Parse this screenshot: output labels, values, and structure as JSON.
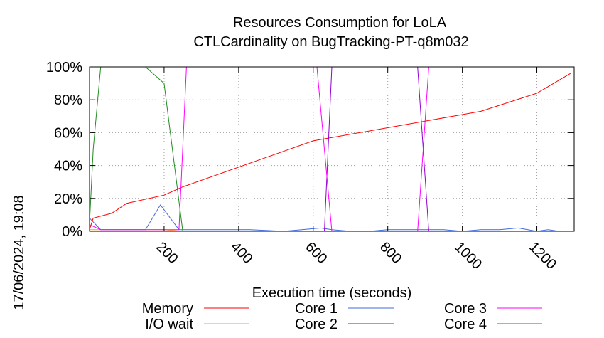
{
  "chart_data": {
    "type": "line",
    "title": "Resources Consumption for LoLA",
    "subtitle": "CTLCardinality on BugTracking-PT-q8m032",
    "xlabel": "Execution time (seconds)",
    "ylabel": "",
    "xlim": [
      0,
      1300
    ],
    "ylim": [
      0,
      100
    ],
    "x_ticks": [
      {
        "value": 200,
        "label": "200"
      },
      {
        "value": 400,
        "label": "400"
      },
      {
        "value": 600,
        "label": "600"
      },
      {
        "value": 800,
        "label": "800"
      },
      {
        "value": 1000,
        "label": "1000"
      },
      {
        "value": 1200,
        "label": "1200"
      }
    ],
    "y_ticks": [
      {
        "value": 0,
        "label": "0%"
      },
      {
        "value": 20,
        "label": "20%"
      },
      {
        "value": 40,
        "label": "40%"
      },
      {
        "value": 60,
        "label": "60%"
      },
      {
        "value": 80,
        "label": "80%"
      },
      {
        "value": 100,
        "label": "100%"
      }
    ],
    "grid": true,
    "legend_position": "bottom",
    "timestamp": "17/06/2024, 19:08",
    "series": [
      {
        "name": "Memory",
        "color": "#ff0000",
        "x": [
          0,
          10,
          60,
          100,
          200,
          250,
          600,
          650,
          900,
          1000,
          1050,
          1200,
          1290
        ],
        "y": [
          1,
          8,
          11,
          17,
          22,
          27,
          55,
          57,
          67,
          71,
          73,
          84,
          96
        ]
      },
      {
        "name": "I/O wait",
        "color": "#ffa500",
        "x": [
          0,
          30,
          60,
          100,
          150,
          200,
          250,
          1290
        ],
        "y": [
          1,
          1,
          1,
          1,
          1,
          1,
          0,
          0
        ]
      },
      {
        "name": "Core 1",
        "color": "#4169e1",
        "x": [
          0,
          30,
          60,
          100,
          150,
          190,
          240,
          260,
          330,
          390,
          430,
          520,
          570,
          620,
          650,
          700,
          750,
          800,
          850,
          900,
          950,
          1000,
          1050,
          1100,
          1150,
          1200,
          1230,
          1260,
          1290
        ],
        "y": [
          8,
          1,
          1,
          1,
          1,
          16,
          1,
          1,
          1,
          1,
          1,
          0,
          1,
          2,
          1,
          0,
          0,
          1,
          1,
          1,
          1,
          0,
          1,
          1,
          2,
          0,
          1,
          0,
          0
        ]
      },
      {
        "name": "Core 2",
        "color": "#9400d3",
        "x": [
          0,
          30,
          630,
          650,
          880,
          910,
          930,
          1290
        ],
        "y": [
          0,
          0,
          0,
          100,
          100,
          0,
          0,
          0
        ]
      },
      {
        "name": "Core 3",
        "color": "#ff00ff",
        "x": [
          0,
          30,
          100,
          240,
          260,
          610,
          650,
          880,
          910,
          940,
          1290
        ],
        "y": [
          4,
          1,
          1,
          1,
          100,
          100,
          0,
          0,
          100,
          100,
          100
        ]
      },
      {
        "name": "Core 4",
        "color": "#228b22",
        "x": [
          0,
          10,
          30,
          50,
          100,
          120,
          150,
          200,
          250,
          1290
        ],
        "y": [
          5,
          50,
          100,
          100,
          100,
          100,
          100,
          90,
          0,
          0
        ]
      }
    ]
  }
}
